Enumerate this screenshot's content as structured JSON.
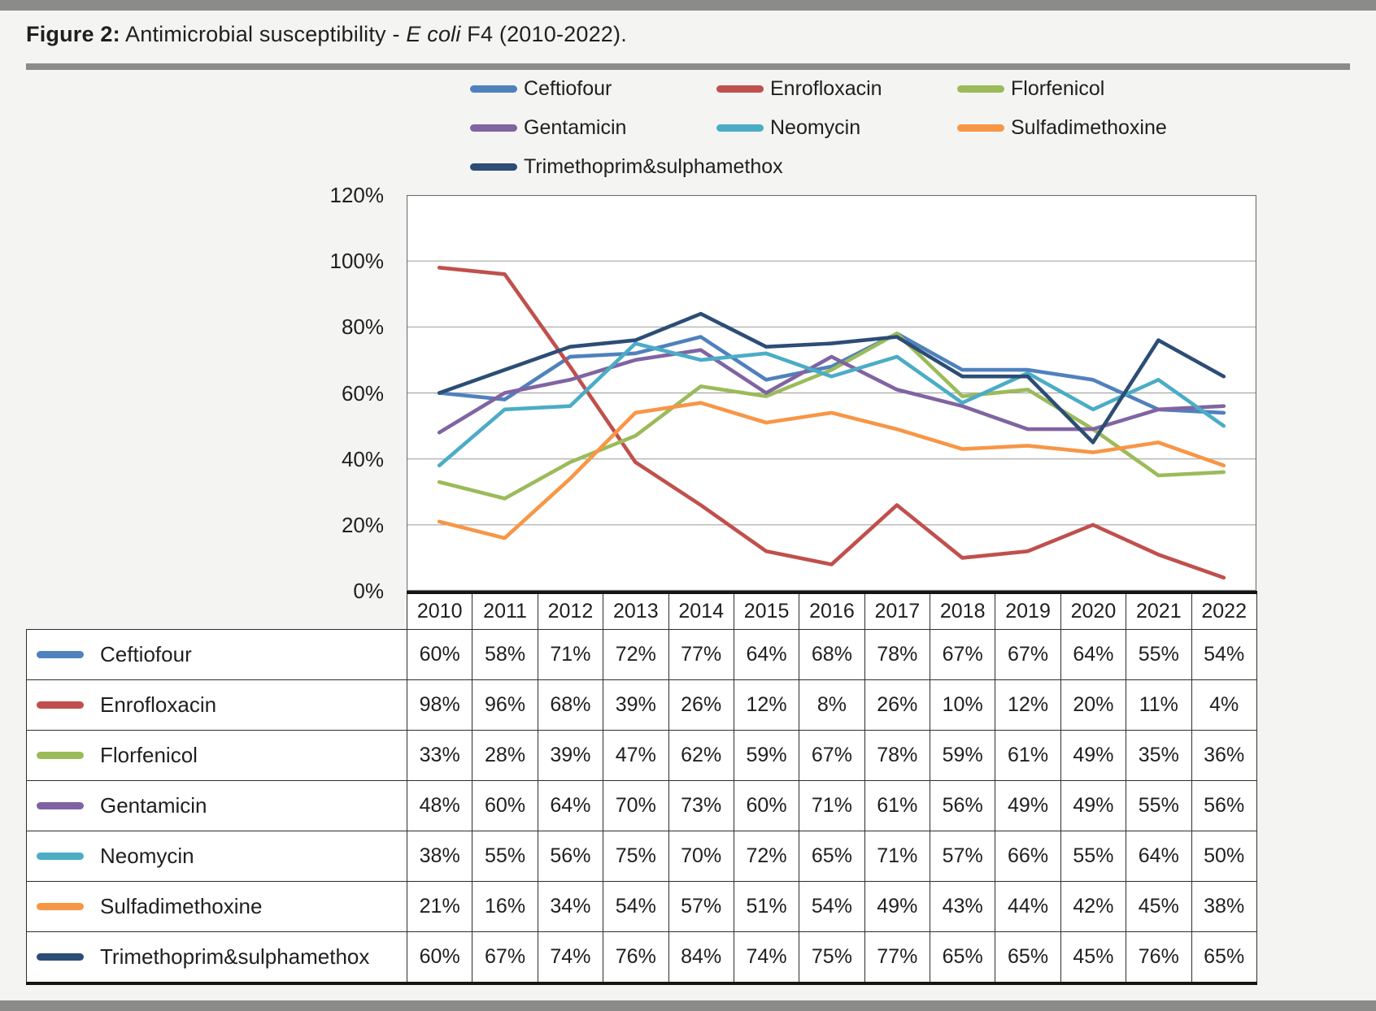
{
  "figure": {
    "label": "Figure 2:",
    "title_pre": " Antimicrobial susceptibility - ",
    "title_italic": "E coli",
    "title_post": " F4 (2010-2022)."
  },
  "colors": {
    "page_background": "#f4f4f2",
    "bar_gray": "#8b8b89",
    "gridline": "#a6a6a6",
    "plot_border": "#6f6f6f",
    "table_border": "#2e2e2e"
  },
  "chart_data": {
    "type": "line",
    "title": "Antimicrobial susceptibility - E coli F4 (2010-2022)",
    "xlabel": "",
    "ylabel": "",
    "x": [
      "2010",
      "2011",
      "2012",
      "2013",
      "2014",
      "2015",
      "2016",
      "2017",
      "2018",
      "2019",
      "2020",
      "2021",
      "2022"
    ],
    "y_ticks": [
      "0%",
      "20%",
      "40%",
      "60%",
      "80%",
      "100%",
      "120%"
    ],
    "ylim": [
      0,
      120
    ],
    "grid": true,
    "legend_position": "top",
    "value_suffix": "%",
    "series": [
      {
        "name": "Ceftiofour",
        "color": "#4F81BD",
        "values": [
          60,
          58,
          71,
          72,
          77,
          64,
          68,
          78,
          67,
          67,
          64,
          55,
          54
        ]
      },
      {
        "name": "Enrofloxacin",
        "color": "#C0504D",
        "values": [
          98,
          96,
          68,
          39,
          26,
          12,
          8,
          26,
          10,
          12,
          20,
          11,
          4
        ]
      },
      {
        "name": "Florfenicol",
        "color": "#9BBB59",
        "values": [
          33,
          28,
          39,
          47,
          62,
          59,
          67,
          78,
          59,
          61,
          49,
          35,
          36
        ]
      },
      {
        "name": "Gentamicin",
        "color": "#8064A2",
        "values": [
          48,
          60,
          64,
          70,
          73,
          60,
          71,
          61,
          56,
          49,
          49,
          55,
          56
        ]
      },
      {
        "name": "Neomycin",
        "color": "#4BACC6",
        "values": [
          38,
          55,
          56,
          75,
          70,
          72,
          65,
          71,
          57,
          66,
          55,
          64,
          50
        ]
      },
      {
        "name": "Sulfadimethoxine",
        "color": "#F79646",
        "values": [
          21,
          16,
          34,
          54,
          57,
          51,
          54,
          49,
          43,
          44,
          42,
          45,
          38
        ]
      },
      {
        "name": "Trimethoprim&sulphamethox",
        "color": "#2C4D75",
        "values": [
          60,
          67,
          74,
          76,
          84,
          74,
          75,
          77,
          65,
          65,
          45,
          76,
          65
        ]
      }
    ]
  }
}
